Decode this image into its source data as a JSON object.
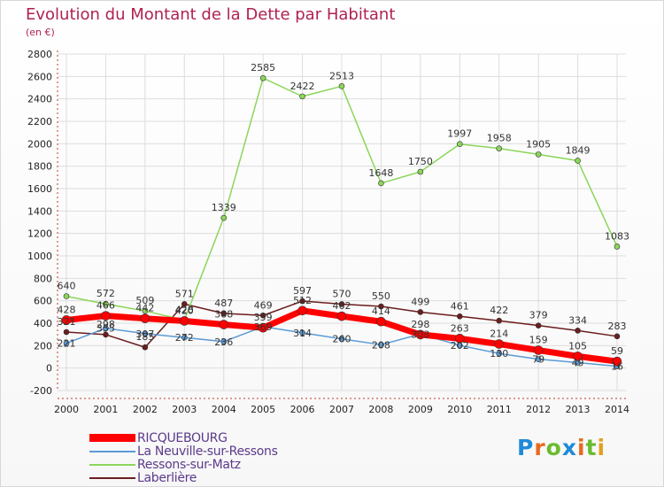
{
  "header": {
    "title": "Evolution du Montant de la Dette par Habitant",
    "subtitle": "(en €)"
  },
  "logo": {
    "text": "Proxiti"
  },
  "chart_data": {
    "type": "line",
    "title": "Evolution du Montant de la Dette par Habitant",
    "subtitle": "(en €)",
    "xlabel": "",
    "ylabel": "",
    "x": [
      2000,
      2001,
      2002,
      2003,
      2004,
      2005,
      2006,
      2007,
      2008,
      2009,
      2010,
      2011,
      2012,
      2013,
      2014
    ],
    "ylim": [
      -200,
      2800
    ],
    "yticks": [
      -200,
      0,
      200,
      400,
      600,
      800,
      1000,
      1200,
      1400,
      1600,
      1800,
      2000,
      2200,
      2400,
      2600,
      2800
    ],
    "grid": true,
    "legend_position": "bottom-left",
    "series": [
      {
        "name": "Laberlière",
        "color": "#6b1d1d",
        "values": [
          321,
          298,
          185,
          571,
          487,
          469,
          597,
          570,
          550,
          499,
          461,
          422,
          379,
          334,
          283
        ]
      },
      {
        "name": "Ressons-sur-Matz",
        "color": "#8bd65a",
        "values": [
          640,
          572,
          509,
          428,
          1339,
          2585,
          2422,
          2513,
          1648,
          1750,
          1997,
          1958,
          1905,
          1849,
          1083
        ]
      },
      {
        "name": "La Neuville-sur-Ressons",
        "color": "#5b9bd5",
        "values": [
          221,
          355,
          307,
          272,
          236,
          369,
          314,
          260,
          208,
          303,
          202,
          130,
          79,
          49,
          16
        ]
      },
      {
        "name": "RICQUEBOURG",
        "color": "#ff0000",
        "values": [
          428,
          466,
          442,
          420,
          388,
          359,
          512,
          462,
          414,
          298,
          263,
          214,
          159,
          105,
          59
        ]
      }
    ],
    "draw_order": [
      "Laberlière",
      "Ressons-sur-Matz",
      "La Neuville-sur-Ressons",
      "RICQUEBOURG"
    ],
    "legend_order": [
      "RICQUEBOURG",
      "La Neuville-sur-Ressons",
      "Ressons-sur-Matz",
      "Laberlière"
    ]
  }
}
